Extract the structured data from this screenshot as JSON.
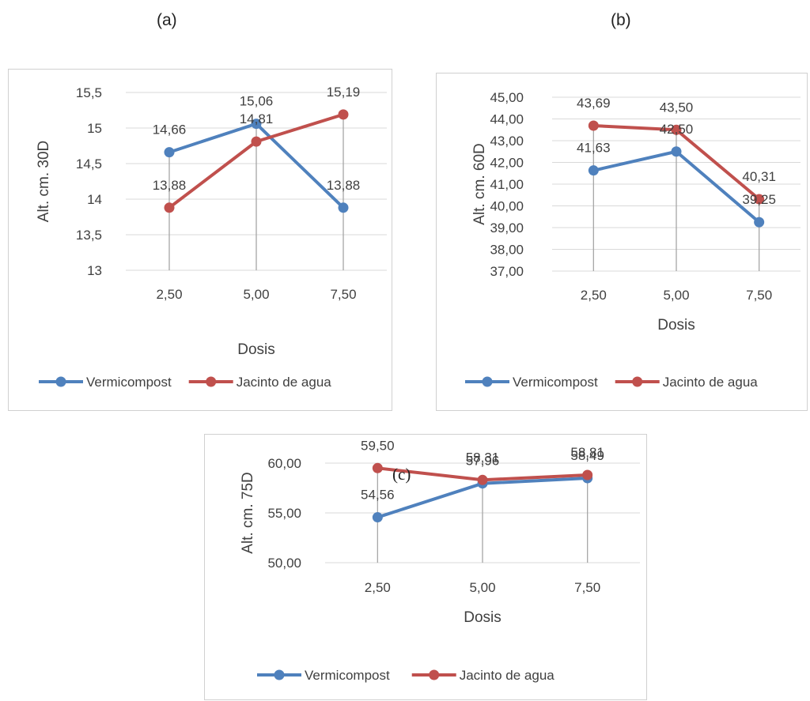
{
  "panel_labels": {
    "a": "(a)",
    "b": "(b)",
    "c": "(c)"
  },
  "chart_data": [
    {
      "id": "a",
      "type": "line",
      "categories": [
        "2,50",
        "5,00",
        "7,50"
      ],
      "xlabel": "Dosis",
      "ylabel": "Alt. cm. 30D",
      "ylim": [
        13,
        15.5
      ],
      "yticks": [
        "13",
        "13,5",
        "14",
        "14,5",
        "15",
        "15,5"
      ],
      "ytick_values": [
        13,
        13.5,
        14,
        14.5,
        15,
        15.5
      ],
      "grid": true,
      "drop_lines": true,
      "legend_position": "bottom",
      "series": [
        {
          "name": "Vermicompost",
          "color": "#4F81BD",
          "values": [
            14.66,
            15.06,
            13.88
          ],
          "labels": [
            "14,66",
            "15,06",
            "13,88"
          ]
        },
        {
          "name": "Jacinto de agua",
          "color": "#C0504D",
          "values": [
            13.88,
            14.81,
            15.19
          ],
          "labels": [
            "13,88",
            "14,81",
            "15,19"
          ]
        }
      ]
    },
    {
      "id": "b",
      "type": "line",
      "categories": [
        "2,50",
        "5,00",
        "7,50"
      ],
      "xlabel": "Dosis",
      "ylabel": "Alt. cm. 60D",
      "ylim": [
        37,
        45
      ],
      "yticks": [
        "37,00",
        "38,00",
        "39,00",
        "40,00",
        "41,00",
        "42,00",
        "43,00",
        "44,00",
        "45,00"
      ],
      "ytick_values": [
        37,
        38,
        39,
        40,
        41,
        42,
        43,
        44,
        45
      ],
      "grid": true,
      "drop_lines": true,
      "legend_position": "bottom",
      "series": [
        {
          "name": "Vermicompost",
          "color": "#4F81BD",
          "values": [
            41.63,
            42.5,
            39.25
          ],
          "labels": [
            "41,63",
            "42,50",
            "39,25"
          ]
        },
        {
          "name": "Jacinto de agua",
          "color": "#C0504D",
          "values": [
            43.69,
            43.5,
            40.31
          ],
          "labels": [
            "43,69",
            "43,50",
            "40,31"
          ]
        }
      ]
    },
    {
      "id": "c",
      "type": "line",
      "categories": [
        "2,50",
        "5,00",
        "7,50"
      ],
      "xlabel": "Dosis",
      "ylabel": "Alt. cm. 75D",
      "ylim": [
        50,
        60
      ],
      "yticks": [
        "50,00",
        "55,00",
        "60,00"
      ],
      "ytick_values": [
        50,
        55,
        60
      ],
      "grid": true,
      "drop_lines": true,
      "legend_position": "bottom",
      "series": [
        {
          "name": "Vermicompost",
          "color": "#4F81BD",
          "values": [
            54.56,
            57.96,
            58.49
          ],
          "labels": [
            "54,56",
            "57,96",
            "58,49"
          ]
        },
        {
          "name": "Jacinto de agua",
          "color": "#C0504D",
          "values": [
            59.5,
            58.31,
            58.81
          ],
          "labels": [
            "59,50",
            "58,31",
            "58,81"
          ]
        }
      ]
    }
  ]
}
